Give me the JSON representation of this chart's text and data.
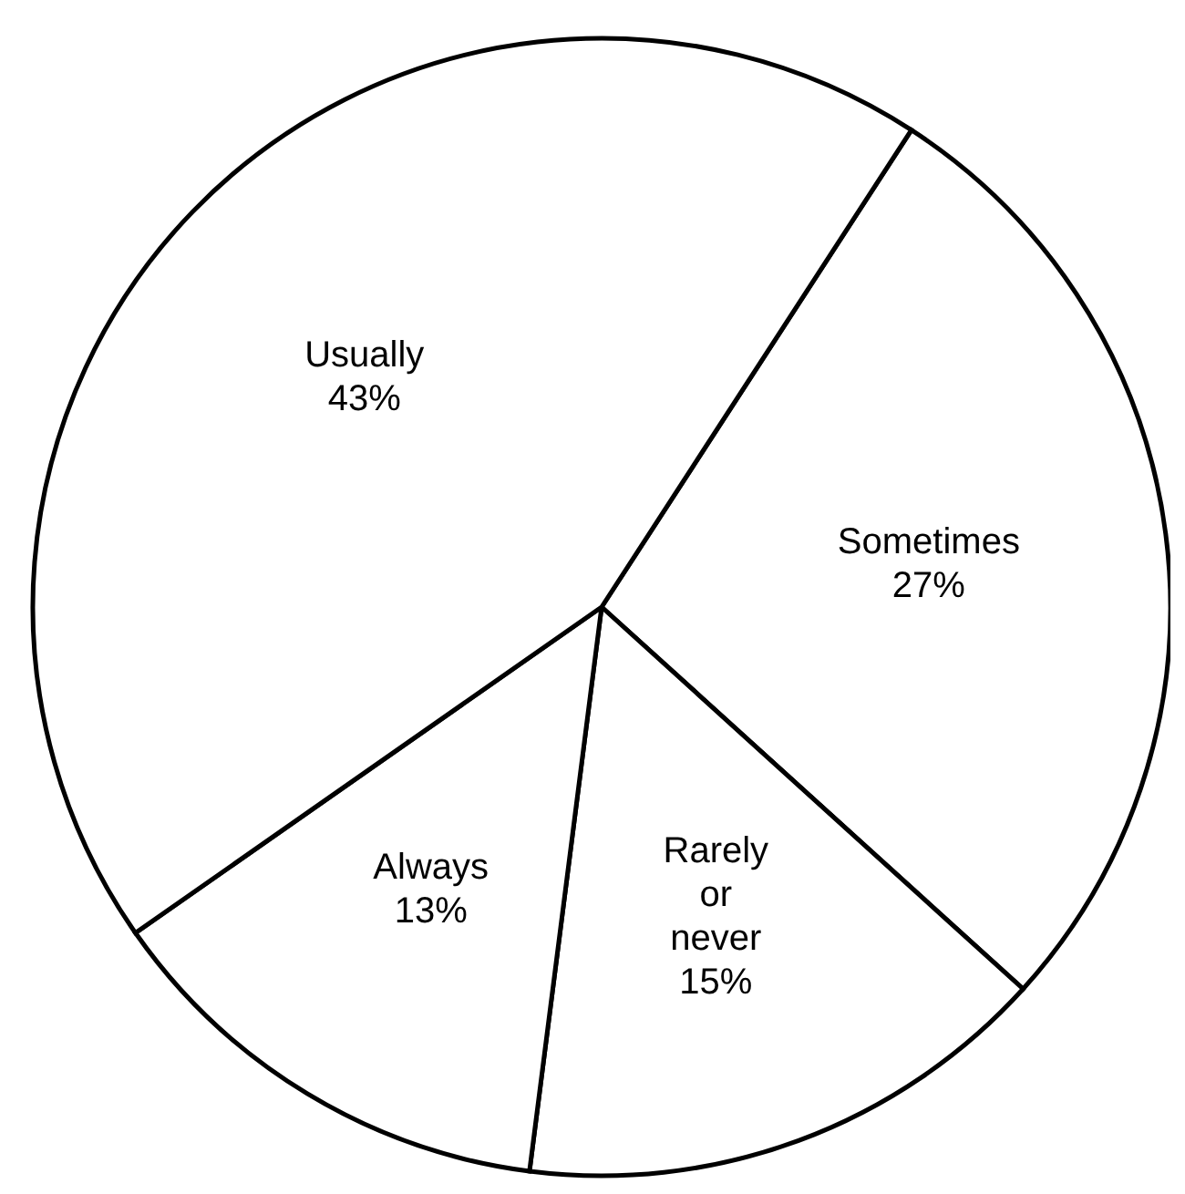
{
  "chart_data": {
    "type": "pie",
    "categories": [
      "Sometimes",
      "Rarely or never",
      "Always",
      "Usually"
    ],
    "values": [
      27,
      15,
      13,
      43
    ],
    "value_labels": [
      "27%",
      "15%",
      "13%",
      "43%"
    ],
    "colors": [
      "#ffffff",
      "#ffffff",
      "#ffffff",
      "#ffffff"
    ]
  }
}
